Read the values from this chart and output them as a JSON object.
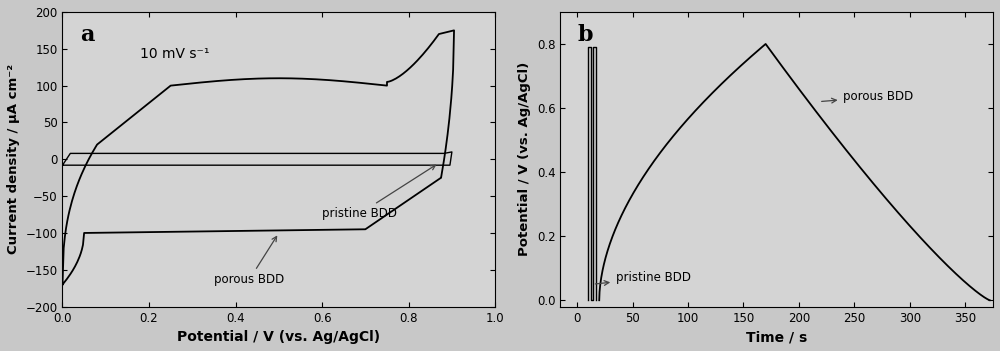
{
  "panel_a": {
    "label": "a",
    "xlabel": "Potential / V (vs. Ag/AgCl)",
    "ylabel": "Current density / μA cm⁻²",
    "xlim": [
      0.0,
      1.0
    ],
    "ylim": [
      -200,
      200
    ],
    "xticks": [
      0.0,
      0.2,
      0.4,
      0.6,
      0.8,
      1.0
    ],
    "yticks": [
      -200,
      -150,
      -100,
      -50,
      0,
      50,
      100,
      150,
      200
    ],
    "annotation_text": "10 mV s⁻¹",
    "label1": "pristine BDD",
    "label2": "porous BDD"
  },
  "panel_b": {
    "label": "b",
    "xlabel": "Time / s",
    "ylabel": "Potential / V (vs. Ag/AgCl)",
    "xlim": [
      -15,
      375
    ],
    "ylim": [
      -0.02,
      0.9
    ],
    "xticks": [
      0,
      50,
      100,
      150,
      200,
      250,
      300,
      350
    ],
    "yticks": [
      0.0,
      0.2,
      0.4,
      0.6,
      0.8
    ],
    "label1": "pristine BDD",
    "label2": "porous BDD"
  },
  "fig_bg": "#c8c8c8",
  "axes_bg": "#d4d4d4",
  "line_color": "#000000",
  "font_color": "#000000"
}
